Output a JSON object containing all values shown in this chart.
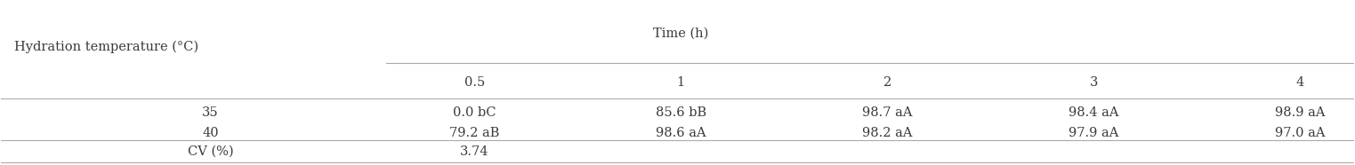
{
  "col_header_top": "Time (h)",
  "col_header_sub": [
    "0.5",
    "1",
    "2",
    "3",
    "4"
  ],
  "row_header_label": "Hydration temperature (°C)",
  "rows": [
    {
      "label": "35",
      "values": [
        "0.0 bC",
        "85.6 bB",
        "98.7 aA",
        "98.4 aA",
        "98.9 aA"
      ]
    },
    {
      "label": "40",
      "values": [
        "79.2 aB",
        "98.6 aA",
        "98.2 aA",
        "97.9 aA",
        "97.0 aA"
      ]
    }
  ],
  "footer_label": "CV (%)",
  "footer_value": "3.74",
  "bg_color": "#ffffff",
  "text_color": "#3a3a3a",
  "line_color": "#aaaaaa",
  "font_size": 10.5
}
